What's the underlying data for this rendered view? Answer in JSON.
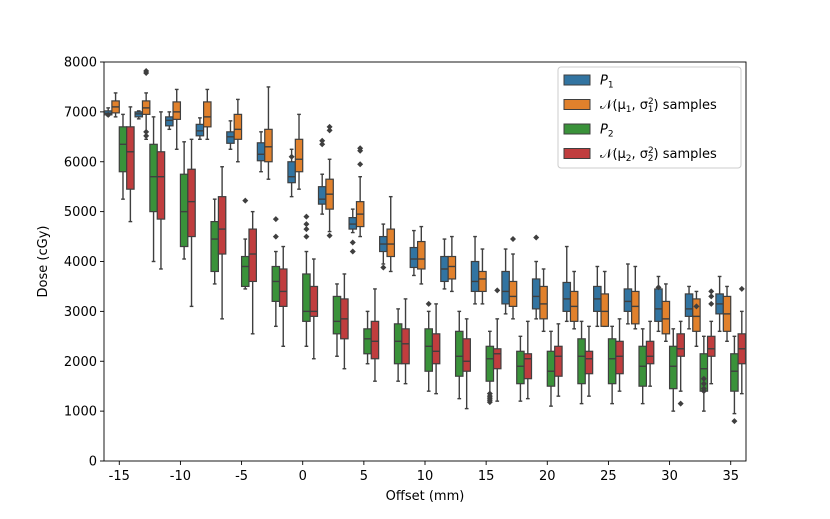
{
  "chart_data": {
    "type": "boxplot",
    "title": "",
    "xlabel": "Offset (mm)",
    "ylabel": "Dose (cGy)",
    "ylim": [
      0,
      8000
    ],
    "yticks": [
      0,
      1000,
      2000,
      3000,
      4000,
      5000,
      6000,
      7000,
      8000
    ],
    "categories": [
      -15,
      -12.5,
      -10,
      -7.5,
      -5,
      -2.5,
      0,
      2.5,
      5,
      7.5,
      10,
      12.5,
      15,
      17.5,
      20,
      22.5,
      25,
      27.5,
      30,
      32.5,
      35
    ],
    "xtick_labels": [
      "-15",
      "-10",
      "-5",
      "0",
      "5",
      "10",
      "15",
      "20",
      "25",
      "30",
      "35"
    ],
    "legend_position": "top-right",
    "series": [
      {
        "name": "P1",
        "legend_main": "P",
        "legend_sub": "1",
        "color": "#3274a1",
        "boxes": [
          {
            "wlo": 6920,
            "q1": 6940,
            "med": 6970,
            "q3": 7020,
            "whi": 7080,
            "fliers": [
              6940
            ]
          },
          {
            "wlo": 6860,
            "q1": 6900,
            "med": 6960,
            "q3": 7000,
            "whi": 7020,
            "fliers": []
          },
          {
            "wlo": 6650,
            "q1": 6720,
            "med": 6830,
            "q3": 6900,
            "whi": 7000,
            "fliers": []
          },
          {
            "wlo": 6450,
            "q1": 6520,
            "med": 6620,
            "q3": 6750,
            "whi": 6880,
            "fliers": []
          },
          {
            "wlo": 6250,
            "q1": 6370,
            "med": 6500,
            "q3": 6600,
            "whi": 6820,
            "fliers": []
          },
          {
            "wlo": 5800,
            "q1": 6020,
            "med": 6150,
            "q3": 6380,
            "whi": 6600,
            "fliers": []
          },
          {
            "wlo": 5300,
            "q1": 5580,
            "med": 5700,
            "q3": 6000,
            "whi": 6250,
            "fliers": [
              6100
            ]
          },
          {
            "wlo": 4950,
            "q1": 5150,
            "med": 5250,
            "q3": 5500,
            "whi": 5750,
            "fliers": [
              6350,
              6420
            ]
          },
          {
            "wlo": 4580,
            "q1": 4650,
            "med": 4750,
            "q3": 4880,
            "whi": 5050,
            "fliers": [
              4200,
              4380
            ]
          },
          {
            "wlo": 3950,
            "q1": 4200,
            "med": 4350,
            "q3": 4500,
            "whi": 4750,
            "fliers": [
              3880
            ]
          },
          {
            "wlo": 3720,
            "q1": 3880,
            "med": 4050,
            "q3": 4280,
            "whi": 4620,
            "fliers": []
          },
          {
            "wlo": 3450,
            "q1": 3600,
            "med": 3850,
            "q3": 4100,
            "whi": 4450,
            "fliers": []
          },
          {
            "wlo": 3150,
            "q1": 3400,
            "med": 3600,
            "q3": 4000,
            "whi": 4500,
            "fliers": []
          },
          {
            "wlo": 2950,
            "q1": 3150,
            "med": 3400,
            "q3": 3800,
            "whi": 4250,
            "fliers": []
          },
          {
            "wlo": 2850,
            "q1": 3050,
            "med": 3300,
            "q3": 3650,
            "whi": 4000,
            "fliers": [
              4480
            ]
          },
          {
            "wlo": 2800,
            "q1": 3000,
            "med": 3250,
            "q3": 3580,
            "whi": 4300,
            "fliers": []
          },
          {
            "wlo": 2700,
            "q1": 3000,
            "med": 3250,
            "q3": 3500,
            "whi": 3900,
            "fliers": []
          },
          {
            "wlo": 2750,
            "q1": 3000,
            "med": 3200,
            "q3": 3450,
            "whi": 3950,
            "fliers": []
          },
          {
            "wlo": 2600,
            "q1": 2800,
            "med": 3050,
            "q3": 3450,
            "whi": 3700,
            "fliers": [
              3480
            ]
          },
          {
            "wlo": 2650,
            "q1": 2900,
            "med": 3050,
            "q3": 3350,
            "whi": 3500,
            "fliers": []
          },
          {
            "wlo": 2600,
            "q1": 2950,
            "med": 3150,
            "q3": 3350,
            "whi": 3700,
            "fliers": []
          }
        ]
      },
      {
        "name": "N(μ1, σ1²) samples",
        "legend_main": "𝒩(μ",
        "legend_sub": "1",
        "legend_mid": ", σ",
        "legend_sup": "2",
        "legend_sub2": "1",
        "legend_end": ") samples",
        "color": "#e1812c",
        "boxes": [
          {
            "wlo": 6900,
            "q1": 6980,
            "med": 7100,
            "q3": 7220,
            "whi": 7380,
            "fliers": []
          },
          {
            "wlo": 6450,
            "q1": 6950,
            "med": 7080,
            "q3": 7220,
            "whi": 7380,
            "fliers": [
              7780,
              7820,
              6520,
              6600
            ]
          },
          {
            "wlo": 6250,
            "q1": 6850,
            "med": 7000,
            "q3": 7200,
            "whi": 7450,
            "fliers": []
          },
          {
            "wlo": 6450,
            "q1": 6700,
            "med": 6900,
            "q3": 7200,
            "whi": 7450,
            "fliers": []
          },
          {
            "wlo": 6000,
            "q1": 6450,
            "med": 6650,
            "q3": 6950,
            "whi": 7250,
            "fliers": []
          },
          {
            "wlo": 5650,
            "q1": 6000,
            "med": 6300,
            "q3": 6650,
            "whi": 7500,
            "fliers": []
          },
          {
            "wlo": 5450,
            "q1": 5800,
            "med": 6050,
            "q3": 6450,
            "whi": 6950,
            "fliers": []
          },
          {
            "wlo": 4600,
            "q1": 5050,
            "med": 5350,
            "q3": 5650,
            "whi": 6050,
            "fliers": [
              6630,
              6700,
              4520
            ]
          },
          {
            "wlo": 4500,
            "q1": 4700,
            "med": 4950,
            "q3": 5200,
            "whi": 5700,
            "fliers": [
              5950,
              6220,
              6270
            ]
          },
          {
            "wlo": 3800,
            "q1": 4100,
            "med": 4350,
            "q3": 4650,
            "whi": 5300,
            "fliers": []
          },
          {
            "wlo": 3550,
            "q1": 3850,
            "med": 4050,
            "q3": 4400,
            "whi": 4700,
            "fliers": []
          },
          {
            "wlo": 3400,
            "q1": 3650,
            "med": 3900,
            "q3": 4100,
            "whi": 4500,
            "fliers": []
          },
          {
            "wlo": 3150,
            "q1": 3400,
            "med": 3650,
            "q3": 3800,
            "whi": 4250,
            "fliers": []
          },
          {
            "wlo": 2850,
            "q1": 3100,
            "med": 3300,
            "q3": 3600,
            "whi": 4150,
            "fliers": [
              4450
            ]
          },
          {
            "wlo": 2600,
            "q1": 2850,
            "med": 3150,
            "q3": 3500,
            "whi": 3850,
            "fliers": []
          },
          {
            "wlo": 2650,
            "q1": 2800,
            "med": 3100,
            "q3": 3400,
            "whi": 3800,
            "fliers": []
          },
          {
            "wlo": 2700,
            "q1": 2700,
            "med": 3000,
            "q3": 3350,
            "whi": 3800,
            "fliers": []
          },
          {
            "wlo": 2650,
            "q1": 2750,
            "med": 3100,
            "q3": 3400,
            "whi": 3900,
            "fliers": []
          },
          {
            "wlo": 2400,
            "q1": 2550,
            "med": 2850,
            "q3": 3200,
            "whi": 3550,
            "fliers": []
          },
          {
            "wlo": 2300,
            "q1": 2600,
            "med": 2900,
            "q3": 3250,
            "whi": 3400,
            "fliers": [
              3100
            ]
          },
          {
            "wlo": 2400,
            "q1": 2600,
            "med": 2950,
            "q3": 3300,
            "whi": 3500,
            "fliers": []
          }
        ]
      },
      {
        "name": "P2",
        "legend_main": "P",
        "legend_sub": "2",
        "color": "#3a923a",
        "boxes": [
          {
            "wlo": 5250,
            "q1": 5800,
            "med": 6350,
            "q3": 6700,
            "whi": 6950,
            "fliers": []
          },
          {
            "wlo": 4000,
            "q1": 5000,
            "med": 5700,
            "q3": 6350,
            "whi": 6900,
            "fliers": []
          },
          {
            "wlo": 4050,
            "q1": 4300,
            "med": 5000,
            "q3": 5750,
            "whi": 6400,
            "fliers": []
          },
          {
            "wlo": 3550,
            "q1": 3800,
            "med": 4450,
            "q3": 4800,
            "whi": 5250,
            "fliers": []
          },
          {
            "wlo": 3450,
            "q1": 3500,
            "med": 3900,
            "q3": 4100,
            "whi": 4450,
            "fliers": [
              5220
            ]
          },
          {
            "wlo": 2700,
            "q1": 3200,
            "med": 3600,
            "q3": 3900,
            "whi": 4200,
            "fliers": [
              4500,
              4850
            ]
          },
          {
            "wlo": 2300,
            "q1": 2800,
            "med": 3000,
            "q3": 3750,
            "whi": 4200,
            "fliers": [
              4500,
              4650,
              4750,
              4900
            ]
          },
          {
            "wlo": 2100,
            "q1": 2550,
            "med": 2800,
            "q3": 3300,
            "whi": 3550,
            "fliers": []
          },
          {
            "wlo": 1950,
            "q1": 2150,
            "med": 2450,
            "q3": 2650,
            "whi": 3000,
            "fliers": []
          },
          {
            "wlo": 1600,
            "q1": 1950,
            "med": 2400,
            "q3": 2750,
            "whi": 3050,
            "fliers": []
          },
          {
            "wlo": 1400,
            "q1": 1800,
            "med": 2300,
            "q3": 2650,
            "whi": 3000,
            "fliers": [
              3150
            ]
          },
          {
            "wlo": 1250,
            "q1": 1700,
            "med": 2100,
            "q3": 2600,
            "whi": 3000,
            "fliers": []
          },
          {
            "wlo": 1250,
            "q1": 1600,
            "med": 2050,
            "q3": 2300,
            "whi": 2600,
            "fliers": [
              1180,
              1220,
              1260,
              1300,
              1350
            ]
          },
          {
            "wlo": 1200,
            "q1": 1550,
            "med": 1900,
            "q3": 2200,
            "whi": 2500,
            "fliers": []
          },
          {
            "wlo": 1100,
            "q1": 1500,
            "med": 1800,
            "q3": 2200,
            "whi": 2600,
            "fliers": []
          },
          {
            "wlo": 1150,
            "q1": 1550,
            "med": 2100,
            "q3": 2450,
            "whi": 2800,
            "fliers": []
          },
          {
            "wlo": 1150,
            "q1": 1550,
            "med": 2050,
            "q3": 2450,
            "whi": 2700,
            "fliers": []
          },
          {
            "wlo": 1150,
            "q1": 1500,
            "med": 1900,
            "q3": 2300,
            "whi": 2650,
            "fliers": []
          },
          {
            "wlo": 1000,
            "q1": 1450,
            "med": 1900,
            "q3": 2300,
            "whi": 2650,
            "fliers": []
          },
          {
            "wlo": 1000,
            "q1": 1400,
            "med": 1850,
            "q3": 2150,
            "whi": 2500,
            "fliers": [
              1400,
              1450,
              1550,
              1650
            ]
          },
          {
            "wlo": 950,
            "q1": 1400,
            "med": 1800,
            "q3": 2150,
            "whi": 2500,
            "fliers": [
              800
            ]
          }
        ]
      },
      {
        "name": "N(μ2, σ2²) samples",
        "legend_main": "𝒩(μ",
        "legend_sub": "2",
        "legend_mid": ", σ",
        "legend_sup": "2",
        "legend_sub2": "2",
        "legend_end": ") samples",
        "color": "#c03d3e",
        "boxes": [
          {
            "wlo": 4800,
            "q1": 5450,
            "med": 6200,
            "q3": 6700,
            "whi": 7100,
            "fliers": []
          },
          {
            "wlo": 3850,
            "q1": 4850,
            "med": 5700,
            "q3": 6200,
            "whi": 7000,
            "fliers": []
          },
          {
            "wlo": 3100,
            "q1": 4500,
            "med": 5200,
            "q3": 5850,
            "whi": 6450,
            "fliers": []
          },
          {
            "wlo": 2850,
            "q1": 4150,
            "med": 4650,
            "q3": 5300,
            "whi": 5900,
            "fliers": []
          },
          {
            "wlo": 2550,
            "q1": 3600,
            "med": 4150,
            "q3": 4650,
            "whi": 5000,
            "fliers": []
          },
          {
            "wlo": 2300,
            "q1": 3100,
            "med": 3400,
            "q3": 3850,
            "whi": 4300,
            "fliers": []
          },
          {
            "wlo": 2050,
            "q1": 2900,
            "med": 3000,
            "q3": 3500,
            "whi": 4050,
            "fliers": []
          },
          {
            "wlo": 1850,
            "q1": 2450,
            "med": 2850,
            "q3": 3250,
            "whi": 3750,
            "fliers": []
          },
          {
            "wlo": 1600,
            "q1": 2050,
            "med": 2400,
            "q3": 2800,
            "whi": 3450,
            "fliers": []
          },
          {
            "wlo": 1550,
            "q1": 1950,
            "med": 2350,
            "q3": 2650,
            "whi": 3250,
            "fliers": []
          },
          {
            "wlo": 1350,
            "q1": 1950,
            "med": 2200,
            "q3": 2550,
            "whi": 3150,
            "fliers": []
          },
          {
            "wlo": 1050,
            "q1": 1800,
            "med": 2000,
            "q3": 2450,
            "whi": 2850,
            "fliers": []
          },
          {
            "wlo": 1200,
            "q1": 1850,
            "med": 2150,
            "q3": 2250,
            "whi": 2850,
            "fliers": [
              3420
            ]
          },
          {
            "wlo": 1250,
            "q1": 1650,
            "med": 2050,
            "q3": 2150,
            "whi": 2800,
            "fliers": []
          },
          {
            "wlo": 1300,
            "q1": 1700,
            "med": 2100,
            "q3": 2300,
            "whi": 2750,
            "fliers": []
          },
          {
            "wlo": 1300,
            "q1": 1750,
            "med": 2050,
            "q3": 2200,
            "whi": 2700,
            "fliers": []
          },
          {
            "wlo": 1400,
            "q1": 1750,
            "med": 2100,
            "q3": 2400,
            "whi": 2850,
            "fliers": []
          },
          {
            "wlo": 1500,
            "q1": 1950,
            "med": 2100,
            "q3": 2400,
            "whi": 2800,
            "fliers": []
          },
          {
            "wlo": 1400,
            "q1": 2100,
            "med": 2250,
            "q3": 2550,
            "whi": 2800,
            "fliers": [
              1150
            ]
          },
          {
            "wlo": 1550,
            "q1": 2100,
            "med": 2250,
            "q3": 2500,
            "whi": 2800,
            "fliers": [
              3150,
              3300,
              3400
            ]
          },
          {
            "wlo": 1350,
            "q1": 1950,
            "med": 2250,
            "q3": 2550,
            "whi": 3000,
            "fliers": [
              3450
            ]
          }
        ]
      }
    ]
  }
}
